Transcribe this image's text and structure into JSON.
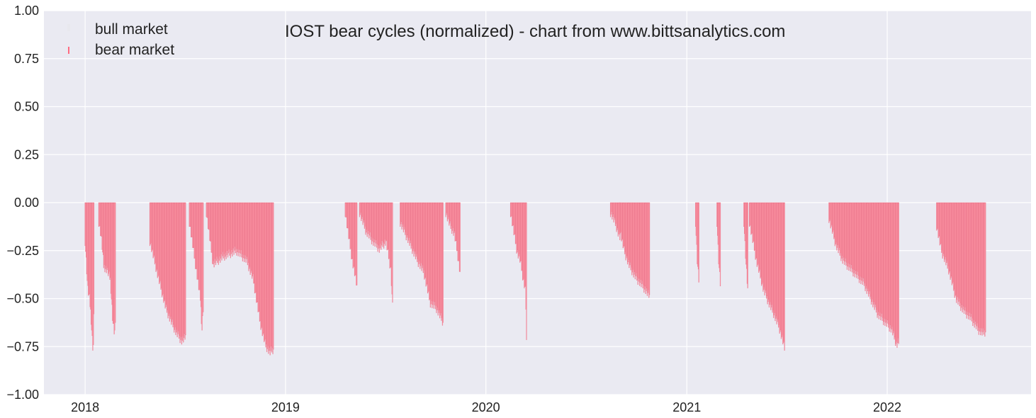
{
  "chart_data": {
    "type": "bar",
    "title": "IOST bear cycles (normalized)  - chart from www.bittsanalytics.com",
    "xlabel": "",
    "ylabel": "",
    "x_range": [
      "2017-10-18",
      "2022-09-20"
    ],
    "ylim": [
      -1.0,
      1.0
    ],
    "grid": true,
    "legend_position": "top-left",
    "background_color": "#eaeaf2",
    "grid_color": "#ffffff",
    "y_ticks": [
      {
        "value": 1.0,
        "label": "1.00"
      },
      {
        "value": 0.75,
        "label": "0.75"
      },
      {
        "value": 0.5,
        "label": "0.50"
      },
      {
        "value": 0.25,
        "label": "0.25"
      },
      {
        "value": 0.0,
        "label": "0.00"
      },
      {
        "value": -0.25,
        "label": "−0.25"
      },
      {
        "value": -0.5,
        "label": "−0.50"
      },
      {
        "value": -0.75,
        "label": "−0.75"
      },
      {
        "value": -1.0,
        "label": "−1.00"
      }
    ],
    "x_ticks": [
      {
        "date": "2018-01-01",
        "label": "2018"
      },
      {
        "date": "2019-01-01",
        "label": "2019"
      },
      {
        "date": "2020-01-01",
        "label": "2020"
      },
      {
        "date": "2021-01-01",
        "label": "2021"
      },
      {
        "date": "2022-01-01",
        "label": "2022"
      }
    ],
    "series": [
      {
        "name": "bull market",
        "color": "#e8e8ee",
        "values": []
      },
      {
        "name": "bear market",
        "color": "#ff6b81",
        "bar_fill": "#ff9aa8",
        "stroke": "#e0607a"
      }
    ],
    "bear_cycles": [
      {
        "start": "2018-01-01",
        "end": "2018-01-17",
        "points": [
          [
            0,
            -0.2
          ],
          [
            0.15,
            -0.32
          ],
          [
            0.3,
            -0.45
          ],
          [
            0.5,
            -0.5
          ],
          [
            0.65,
            -0.58
          ],
          [
            0.8,
            -0.7
          ],
          [
            0.92,
            -0.78
          ],
          [
            1,
            -0.6
          ]
        ]
      },
      {
        "start": "2018-01-26",
        "end": "2018-02-25",
        "points": [
          [
            0,
            -0.1
          ],
          [
            0.15,
            -0.18
          ],
          [
            0.3,
            -0.33
          ],
          [
            0.5,
            -0.35
          ],
          [
            0.7,
            -0.4
          ],
          [
            0.85,
            -0.62
          ],
          [
            0.95,
            -0.68
          ],
          [
            1,
            -0.65
          ]
        ]
      },
      {
        "start": "2018-04-29",
        "end": "2018-07-03",
        "points": [
          [
            0,
            -0.2
          ],
          [
            0.1,
            -0.28
          ],
          [
            0.25,
            -0.4
          ],
          [
            0.45,
            -0.55
          ],
          [
            0.6,
            -0.62
          ],
          [
            0.75,
            -0.68
          ],
          [
            0.9,
            -0.72
          ],
          [
            1,
            -0.7
          ]
        ]
      },
      {
        "start": "2018-07-10",
        "end": "2018-08-04",
        "points": [
          [
            0,
            -0.1
          ],
          [
            0.2,
            -0.2
          ],
          [
            0.4,
            -0.3
          ],
          [
            0.6,
            -0.4
          ],
          [
            0.8,
            -0.5
          ],
          [
            0.92,
            -0.66
          ],
          [
            1,
            -0.55
          ]
        ]
      },
      {
        "start": "2018-08-10",
        "end": "2018-12-10",
        "points": [
          [
            0,
            -0.05
          ],
          [
            0.1,
            -0.32
          ],
          [
            0.25,
            -0.28
          ],
          [
            0.45,
            -0.25
          ],
          [
            0.6,
            -0.3
          ],
          [
            0.7,
            -0.4
          ],
          [
            0.8,
            -0.62
          ],
          [
            0.88,
            -0.74
          ],
          [
            0.95,
            -0.78
          ],
          [
            1,
            -0.76
          ]
        ]
      },
      {
        "start": "2019-04-20",
        "end": "2019-05-11",
        "points": [
          [
            0,
            -0.05
          ],
          [
            0.3,
            -0.18
          ],
          [
            0.6,
            -0.3
          ],
          [
            0.85,
            -0.38
          ],
          [
            1,
            -0.44
          ]
        ]
      },
      {
        "start": "2019-05-16",
        "end": "2019-07-15",
        "points": [
          [
            0,
            -0.05
          ],
          [
            0.2,
            -0.15
          ],
          [
            0.4,
            -0.2
          ],
          [
            0.6,
            -0.24
          ],
          [
            0.8,
            -0.2
          ],
          [
            0.95,
            -0.35
          ],
          [
            1,
            -0.54
          ]
        ]
      },
      {
        "start": "2019-07-29",
        "end": "2019-10-15",
        "points": [
          [
            0,
            -0.1
          ],
          [
            0.2,
            -0.2
          ],
          [
            0.4,
            -0.3
          ],
          [
            0.55,
            -0.36
          ],
          [
            0.7,
            -0.52
          ],
          [
            0.85,
            -0.55
          ],
          [
            0.95,
            -0.6
          ],
          [
            1,
            -0.62
          ]
        ]
      },
      {
        "start": "2019-10-20",
        "end": "2019-11-15",
        "points": [
          [
            0,
            -0.05
          ],
          [
            0.3,
            -0.12
          ],
          [
            0.6,
            -0.16
          ],
          [
            0.85,
            -0.28
          ],
          [
            1,
            -0.36
          ]
        ]
      },
      {
        "start": "2020-02-15",
        "end": "2020-03-15",
        "points": [
          [
            0,
            -0.05
          ],
          [
            0.2,
            -0.15
          ],
          [
            0.4,
            -0.25
          ],
          [
            0.6,
            -0.3
          ],
          [
            0.8,
            -0.4
          ],
          [
            0.95,
            -0.46
          ],
          [
            1,
            -0.72
          ]
        ]
      },
      {
        "start": "2020-08-15",
        "end": "2020-09-01",
        "points": [
          [
            0,
            -0.05
          ],
          [
            0.3,
            -0.08
          ],
          [
            0.6,
            -0.12
          ],
          [
            0.85,
            -0.16
          ],
          [
            1,
            -0.18
          ]
        ]
      },
      {
        "start": "2020-09-01",
        "end": "2020-10-25",
        "points": [
          [
            0,
            -0.14
          ],
          [
            0.15,
            -0.25
          ],
          [
            0.3,
            -0.32
          ],
          [
            0.5,
            -0.38
          ],
          [
            0.7,
            -0.42
          ],
          [
            0.85,
            -0.45
          ],
          [
            1,
            -0.49
          ]
        ]
      },
      {
        "start": "2021-01-17",
        "end": "2021-01-23",
        "points": [
          [
            0,
            -0.1
          ],
          [
            0.5,
            -0.3
          ],
          [
            1,
            -0.4
          ]
        ]
      },
      {
        "start": "2021-02-25",
        "end": "2021-03-03",
        "points": [
          [
            0,
            -0.1
          ],
          [
            0.5,
            -0.3
          ],
          [
            1,
            -0.42
          ]
        ]
      },
      {
        "start": "2021-04-15",
        "end": "2021-04-22",
        "points": [
          [
            0,
            -0.1
          ],
          [
            0.5,
            -0.3
          ],
          [
            1,
            -0.45
          ]
        ]
      },
      {
        "start": "2021-04-25",
        "end": "2021-06-28",
        "points": [
          [
            0,
            -0.1
          ],
          [
            0.2,
            -0.3
          ],
          [
            0.4,
            -0.45
          ],
          [
            0.55,
            -0.52
          ],
          [
            0.7,
            -0.58
          ],
          [
            0.85,
            -0.65
          ],
          [
            0.95,
            -0.72
          ],
          [
            1,
            -0.76
          ]
        ]
      },
      {
        "start": "2021-09-17",
        "end": "2022-01-22",
        "points": [
          [
            0,
            -0.08
          ],
          [
            0.1,
            -0.22
          ],
          [
            0.2,
            -0.3
          ],
          [
            0.35,
            -0.36
          ],
          [
            0.5,
            -0.42
          ],
          [
            0.6,
            -0.5
          ],
          [
            0.7,
            -0.58
          ],
          [
            0.8,
            -0.62
          ],
          [
            0.9,
            -0.66
          ],
          [
            0.97,
            -0.74
          ],
          [
            1,
            -0.72
          ]
        ]
      },
      {
        "start": "2022-04-01",
        "end": "2022-06-29",
        "points": [
          [
            0,
            -0.12
          ],
          [
            0.1,
            -0.25
          ],
          [
            0.25,
            -0.35
          ],
          [
            0.4,
            -0.5
          ],
          [
            0.55,
            -0.56
          ],
          [
            0.7,
            -0.6
          ],
          [
            0.85,
            -0.66
          ],
          [
            0.95,
            -0.68
          ],
          [
            1,
            -0.67
          ]
        ]
      }
    ]
  }
}
